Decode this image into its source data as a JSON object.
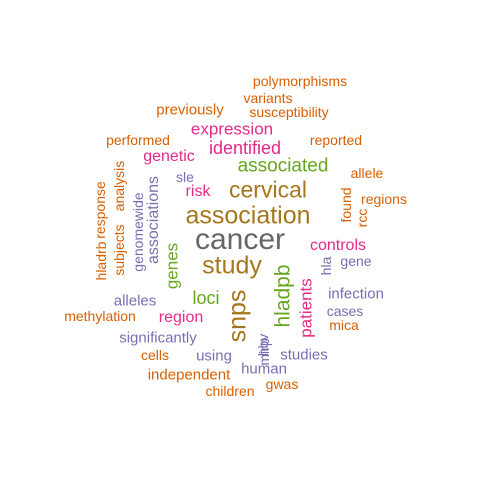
{
  "colors": {
    "orange": "#d95f02",
    "purple": "#7570b3",
    "magenta": "#e7298a",
    "green": "#66a61e",
    "brown": "#a6761d",
    "gray": "#666666"
  },
  "words": [
    {
      "text": "cancer",
      "color": "gray",
      "orientation": "horizontal"
    },
    {
      "text": "association",
      "color": "brown",
      "orientation": "horizontal"
    },
    {
      "text": "study",
      "color": "brown",
      "orientation": "horizontal"
    },
    {
      "text": "snps",
      "color": "brown",
      "orientation": "vertical"
    },
    {
      "text": "cervical",
      "color": "brown",
      "orientation": "horizontal"
    },
    {
      "text": "associated",
      "color": "green",
      "orientation": "horizontal"
    },
    {
      "text": "hladpb",
      "color": "green",
      "orientation": "vertical"
    },
    {
      "text": "identified",
      "color": "magenta",
      "orientation": "horizontal"
    },
    {
      "text": "patients",
      "color": "magenta",
      "orientation": "vertical"
    },
    {
      "text": "expression",
      "color": "magenta",
      "orientation": "horizontal"
    },
    {
      "text": "genetic",
      "color": "magenta",
      "orientation": "horizontal"
    },
    {
      "text": "controls",
      "color": "magenta",
      "orientation": "horizontal"
    },
    {
      "text": "loci",
      "color": "green",
      "orientation": "horizontal"
    },
    {
      "text": "region",
      "color": "magenta",
      "orientation": "horizontal"
    },
    {
      "text": "genes",
      "color": "green",
      "orientation": "vertical"
    },
    {
      "text": "risk",
      "color": "magenta",
      "orientation": "horizontal"
    },
    {
      "text": "associations",
      "color": "purple",
      "orientation": "vertical"
    },
    {
      "text": "significantly",
      "color": "purple",
      "orientation": "horizontal"
    },
    {
      "text": "infection",
      "color": "purple",
      "orientation": "horizontal"
    },
    {
      "text": "alleles",
      "color": "purple",
      "orientation": "horizontal"
    },
    {
      "text": "genomewide",
      "color": "purple",
      "orientation": "vertical"
    },
    {
      "text": "sle",
      "color": "purple",
      "orientation": "horizontal"
    },
    {
      "text": "gene",
      "color": "purple",
      "orientation": "horizontal"
    },
    {
      "text": "hla",
      "color": "purple",
      "orientation": "vertical"
    },
    {
      "text": "hbv",
      "color": "purple",
      "orientation": "vertical"
    },
    {
      "text": "mirp",
      "color": "purple",
      "orientation": "vertical"
    },
    {
      "text": "cases",
      "color": "purple",
      "orientation": "horizontal"
    },
    {
      "text": "using",
      "color": "purple",
      "orientation": "horizontal"
    },
    {
      "text": "studies",
      "color": "purple",
      "orientation": "horizontal"
    },
    {
      "text": "human",
      "color": "purple",
      "orientation": "horizontal"
    },
    {
      "text": "polymorphisms",
      "color": "orange",
      "orientation": "horizontal"
    },
    {
      "text": "variants",
      "color": "orange",
      "orientation": "horizontal"
    },
    {
      "text": "previously",
      "color": "orange",
      "orientation": "horizontal"
    },
    {
      "text": "susceptibility",
      "color": "orange",
      "orientation": "horizontal"
    },
    {
      "text": "performed",
      "color": "orange",
      "orientation": "horizontal"
    },
    {
      "text": "reported",
      "color": "orange",
      "orientation": "horizontal"
    },
    {
      "text": "allele",
      "color": "orange",
      "orientation": "horizontal"
    },
    {
      "text": "regions",
      "color": "orange",
      "orientation": "horizontal"
    },
    {
      "text": "found",
      "color": "orange",
      "orientation": "vertical"
    },
    {
      "text": "rcc",
      "color": "orange",
      "orientation": "vertical"
    },
    {
      "text": "response",
      "color": "orange",
      "orientation": "vertical"
    },
    {
      "text": "analysis",
      "color": "orange",
      "orientation": "vertical"
    },
    {
      "text": "subjects",
      "color": "orange",
      "orientation": "vertical"
    },
    {
      "text": "hladrb",
      "color": "orange",
      "orientation": "vertical"
    },
    {
      "text": "methylation",
      "color": "orange",
      "orientation": "horizontal"
    },
    {
      "text": "mica",
      "color": "orange",
      "orientation": "horizontal"
    },
    {
      "text": "cells",
      "color": "orange",
      "orientation": "horizontal"
    },
    {
      "text": "independent",
      "color": "orange",
      "orientation": "horizontal"
    },
    {
      "text": "gwas",
      "color": "orange",
      "orientation": "horizontal"
    },
    {
      "text": "children",
      "color": "orange",
      "orientation": "horizontal"
    }
  ]
}
